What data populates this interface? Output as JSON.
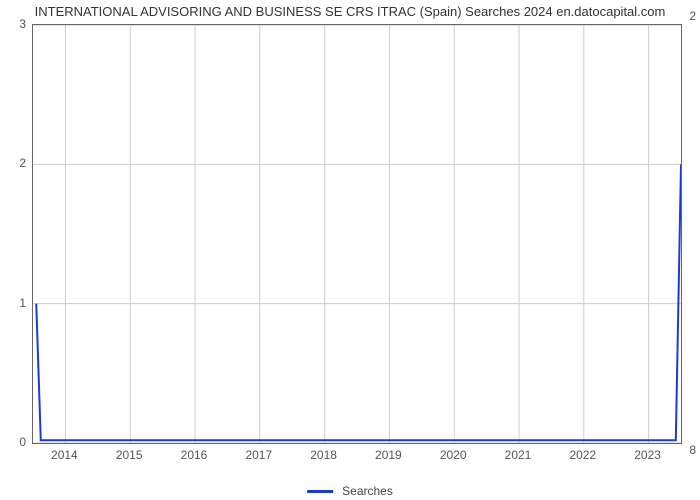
{
  "chart": {
    "type": "line",
    "title": "INTERNATIONAL ADVISORING AND BUSINESS SE CRS ITRAC (Spain) Searches 2024 en.datocapital.com",
    "title_fontsize": 13,
    "title_color": "#333333",
    "background_color": "#ffffff",
    "plot_border_color": "#666666",
    "grid_color": "#cccccc",
    "grid_width": 1,
    "line_color": "#1a3cd6",
    "line_width": 2,
    "xlim": [
      2013.5,
      2023.5
    ],
    "ylim": [
      0,
      3
    ],
    "y_ticks": [
      0,
      1,
      2,
      3
    ],
    "secondary_y_ticks": [
      {
        "label": "8",
        "pos": 0
      },
      {
        "label": "2",
        "pos": 3
      }
    ],
    "x_ticks": [
      2014,
      2015,
      2016,
      2017,
      2018,
      2019,
      2020,
      2021,
      2022,
      2023
    ],
    "series": {
      "name": "Searches",
      "x": [
        2013.55,
        2013.62,
        2023.42,
        2023.5
      ],
      "y": [
        1.0,
        0.02,
        0.02,
        2.0
      ]
    },
    "legend": {
      "label": "Searches",
      "position": "bottom-center"
    }
  }
}
